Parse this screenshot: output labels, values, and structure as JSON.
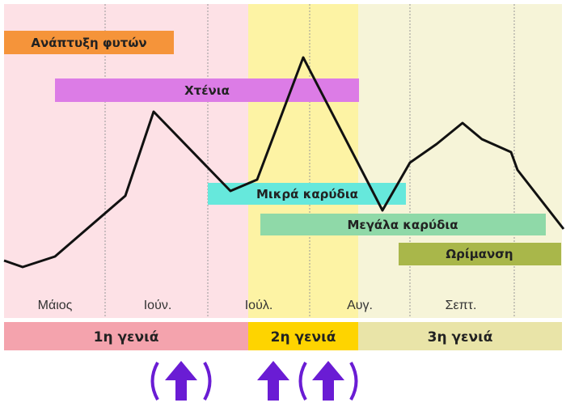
{
  "months": [
    "Μάιος",
    "Ιούν.",
    "Ιούλ.",
    "Αυγ.",
    "Σεπτ."
  ],
  "phases": [
    {
      "label": "Ανάπτυξη φυτών"
    },
    {
      "label": "Χτένια"
    },
    {
      "label": "Μικρά καρύδια"
    },
    {
      "label": "Μεγάλα καρύδια"
    },
    {
      "label": "Ωρίμανση"
    }
  ],
  "generations": [
    "1η γενιά",
    "2η γενιά",
    "3η γενιά"
  ]
}
